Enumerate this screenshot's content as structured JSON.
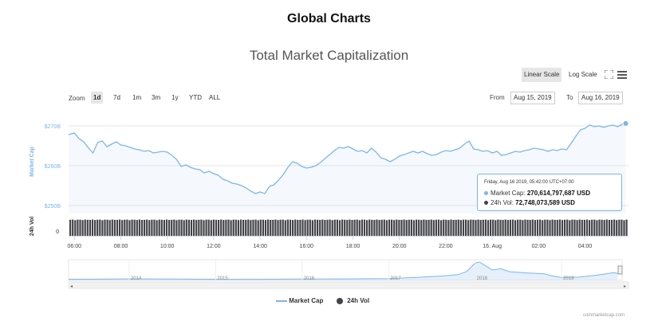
{
  "page_title": "Global Charts",
  "chart_data": {
    "type": "line",
    "title": "Total Market Capitalization",
    "y_axis_label": "Market Cap",
    "y2_axis_label": "24h Vol",
    "y_ticks": [
      "$270B",
      "$260B",
      "$250B"
    ],
    "y_range": [
      248,
      274
    ],
    "vol_tick": "0",
    "x_ticks": [
      "06:00",
      "08:00",
      "10:00",
      "12:00",
      "14:00",
      "16:00",
      "18:00",
      "20:00",
      "22:00",
      "16. Aug",
      "02:00",
      "04:00"
    ],
    "x_ticks_hours": [
      6,
      8,
      10,
      12,
      14,
      16,
      18,
      20,
      22,
      24,
      26,
      28
    ],
    "x_range_hours": [
      5.75,
      29.87
    ],
    "series": [
      {
        "name": "Market Cap",
        "color": "#7cb5ec",
        "x": [
          5.75,
          6.0,
          6.2,
          6.4,
          6.6,
          6.8,
          7.0,
          7.2,
          7.4,
          7.6,
          7.8,
          8.0,
          8.2,
          8.4,
          8.6,
          8.8,
          9.0,
          9.2,
          9.4,
          9.6,
          9.8,
          10.0,
          10.2,
          10.4,
          10.6,
          10.8,
          11.0,
          11.2,
          11.4,
          11.6,
          11.8,
          12.0,
          12.2,
          12.4,
          12.6,
          12.8,
          13.0,
          13.2,
          13.4,
          13.6,
          13.8,
          14.0,
          14.2,
          14.4,
          14.6,
          14.8,
          15.0,
          15.2,
          15.4,
          15.6,
          15.8,
          16.0,
          16.2,
          16.4,
          16.6,
          16.8,
          17.0,
          17.2,
          17.4,
          17.6,
          17.8,
          18.0,
          18.2,
          18.4,
          18.6,
          18.8,
          19.0,
          19.2,
          19.4,
          19.6,
          19.8,
          20.0,
          20.2,
          20.4,
          20.6,
          20.8,
          21.0,
          21.2,
          21.4,
          21.6,
          21.8,
          22.0,
          22.2,
          22.4,
          22.6,
          22.8,
          23.0,
          23.2,
          23.4,
          23.6,
          23.8,
          24.0,
          24.2,
          24.4,
          24.6,
          24.8,
          25.0,
          25.2,
          25.4,
          25.6,
          25.8,
          26.0,
          26.2,
          26.4,
          26.6,
          26.8,
          27.0,
          27.2,
          27.4,
          27.6,
          27.8,
          28.0,
          28.2,
          28.4,
          28.6,
          28.8,
          29.0,
          29.2,
          29.4,
          29.6,
          29.75
        ],
        "values": [
          267.8,
          268.2,
          266.8,
          266.0,
          264.5,
          263.2,
          265.8,
          266.2,
          264.8,
          265.4,
          266.0,
          265.2,
          265.0,
          264.6,
          264.2,
          264.0,
          263.6,
          263.8,
          263.2,
          263.4,
          263.6,
          263.4,
          262.6,
          261.6,
          259.8,
          260.2,
          259.6,
          259.2,
          259.0,
          258.2,
          258.6,
          258.0,
          257.6,
          256.6,
          256.2,
          255.6,
          255.4,
          255.0,
          254.4,
          253.6,
          253.0,
          253.4,
          253.0,
          254.8,
          255.2,
          256.4,
          257.8,
          259.6,
          261.0,
          260.6,
          259.8,
          259.4,
          259.6,
          260.0,
          260.8,
          261.8,
          262.8,
          263.8,
          264.6,
          264.4,
          264.8,
          264.2,
          263.6,
          263.8,
          263.2,
          264.4,
          263.4,
          262.0,
          261.6,
          261.0,
          261.6,
          262.4,
          262.8,
          263.2,
          263.6,
          263.2,
          263.6,
          263.0,
          262.6,
          262.8,
          263.4,
          263.8,
          263.6,
          264.0,
          264.4,
          265.4,
          266.2,
          264.2,
          264.0,
          263.6,
          263.8,
          263.2,
          263.6,
          262.6,
          262.8,
          263.2,
          263.6,
          263.4,
          263.8,
          264.0,
          264.4,
          264.2,
          264.0,
          263.6,
          264.0,
          263.8,
          264.2,
          264.0,
          265.6,
          267.4,
          269.0,
          269.4,
          270.2,
          269.8,
          270.0,
          269.6,
          270.0,
          270.2,
          269.8,
          270.4,
          270.61
        ],
        "marker": {
          "x": 29.75,
          "y": 270.61
        }
      },
      {
        "name": "24h Vol",
        "color": "#434348",
        "type": "column",
        "values_level": 0.85
      }
    ],
    "tooltip": {
      "date": "Friday, Aug 16 2019, 05:42:00 UTC+07:00",
      "rows": [
        {
          "label": "Market Cap:",
          "value": "270,614,797,687 USD",
          "color": "#7cb5ec"
        },
        {
          "label": "24h Vol:",
          "value": "72,748,073,589 USD",
          "color": "#434348"
        }
      ]
    },
    "navigator": {
      "year_labels": [
        "2014",
        "2015",
        "2016",
        "2017",
        "2018",
        "2019"
      ],
      "year_positions": [
        2014,
        2015,
        2016,
        2017,
        2018,
        2019
      ],
      "range": [
        2013.3,
        2019.7
      ],
      "x": [
        2013.3,
        2014.0,
        2014.5,
        2015.0,
        2015.5,
        2016.0,
        2016.5,
        2017.0,
        2017.3,
        2017.6,
        2017.8,
        2017.9,
        2018.0,
        2018.05,
        2018.1,
        2018.2,
        2018.3,
        2018.4,
        2018.6,
        2018.8,
        2018.9,
        2019.0,
        2019.2,
        2019.4,
        2019.5,
        2019.6,
        2019.65
      ],
      "values": [
        0.02,
        0.04,
        0.03,
        0.02,
        0.02,
        0.03,
        0.04,
        0.06,
        0.12,
        0.2,
        0.28,
        0.45,
        0.95,
        1.0,
        0.85,
        0.55,
        0.62,
        0.45,
        0.38,
        0.33,
        0.2,
        0.12,
        0.14,
        0.25,
        0.32,
        0.4,
        0.35
      ]
    }
  },
  "scale_buttons": {
    "linear": "Linear Scale",
    "log": "Log Scale"
  },
  "zoom": {
    "label": "Zoom",
    "buttons": [
      "1d",
      "7d",
      "1m",
      "3m",
      "1y",
      "YTD",
      "ALL"
    ],
    "active": "1d"
  },
  "range": {
    "from_label": "From",
    "from_value": "Aug 15, 2019",
    "to_label": "To",
    "to_value": "Aug 16, 2019"
  },
  "legend": [
    {
      "label": "Market Cap",
      "color": "#7cb5ec"
    },
    {
      "label": "24h Vol",
      "color": "#434348"
    }
  ],
  "credits": "coinmarketcap.com",
  "icons": {
    "fullscreen": "fullscreen-icon",
    "menu": "hamburger-menu-icon"
  }
}
